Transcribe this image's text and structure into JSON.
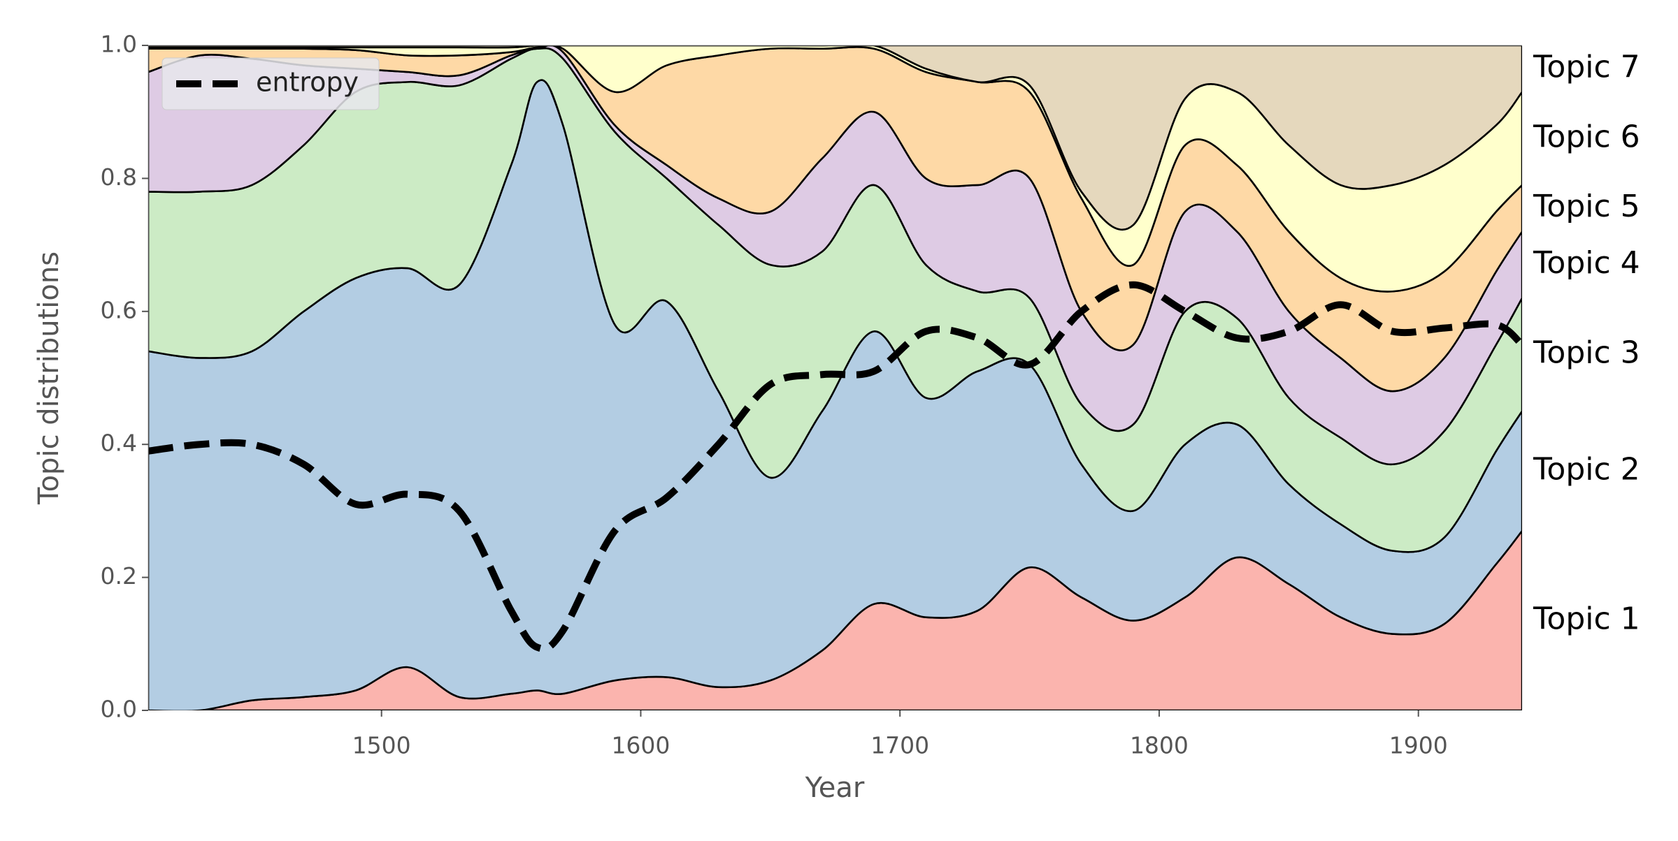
{
  "chart_data": {
    "type": "stackplot",
    "xlabel": "Year",
    "ylabel": "Topic distributions",
    "x": [
      1410,
      1430,
      1450,
      1470,
      1490,
      1510,
      1530,
      1550,
      1560,
      1570,
      1590,
      1610,
      1630,
      1650,
      1670,
      1690,
      1710,
      1730,
      1750,
      1770,
      1790,
      1810,
      1830,
      1850,
      1870,
      1890,
      1910,
      1930,
      1940
    ],
    "xlim": [
      1410,
      1940
    ],
    "xticks": [
      1500,
      1600,
      1700,
      1800,
      1900
    ],
    "ylim": [
      0,
      1
    ],
    "yticks": [
      {
        "value": 0,
        "label": "0.0"
      },
      0.2,
      0.4,
      0.6,
      0.8,
      {
        "value": 1,
        "label": "1.0"
      }
    ],
    "series": [
      {
        "name": "Topic 1",
        "color": "#fbb4ae",
        "values": [
          0,
          0,
          0.015,
          0.02,
          0.03,
          0.065,
          0.02,
          0.025,
          0.03,
          0.025,
          0.045,
          0.05,
          0.035,
          0.045,
          0.09,
          0.16,
          0.14,
          0.15,
          0.215,
          0.17,
          0.135,
          0.17,
          0.23,
          0.19,
          0.14,
          0.115,
          0.13,
          0.22,
          0.27
        ]
      },
      {
        "name": "Topic 2",
        "color": "#b3cde3",
        "values": [
          0.54,
          0.53,
          0.525,
          0.58,
          0.62,
          0.6,
          0.62,
          0.795,
          0.915,
          0.855,
          0.535,
          0.565,
          0.445,
          0.305,
          0.36,
          0.41,
          0.33,
          0.36,
          0.305,
          0.2,
          0.165,
          0.23,
          0.2,
          0.15,
          0.14,
          0.125,
          0.13,
          0.17,
          0.18
        ]
      },
      {
        "name": "Topic 3",
        "color": "#ccebc5",
        "values": [
          0.24,
          0.25,
          0.25,
          0.25,
          0.28,
          0.28,
          0.3,
          0.16,
          0.05,
          0.1,
          0.29,
          0.185,
          0.25,
          0.32,
          0.24,
          0.22,
          0.2,
          0.12,
          0.1,
          0.09,
          0.13,
          0.2,
          0.16,
          0.13,
          0.13,
          0.13,
          0.16,
          0.16,
          0.17
        ]
      },
      {
        "name": "Topic 4",
        "color": "#decbe4",
        "values": [
          0.18,
          0.205,
          0.19,
          0.12,
          0.035,
          0.015,
          0.015,
          0.005,
          0,
          0.01,
          0.01,
          0.02,
          0.04,
          0.08,
          0.14,
          0.11,
          0.13,
          0.16,
          0.18,
          0.14,
          0.12,
          0.15,
          0.13,
          0.13,
          0.12,
          0.11,
          0.11,
          0.11,
          0.1
        ]
      },
      {
        "name": "Topic 5",
        "color": "#fed9a6",
        "values": [
          0.035,
          0.01,
          0.015,
          0.025,
          0.028,
          0.025,
          0.03,
          0.005,
          0.002,
          0.005,
          0.05,
          0.15,
          0.215,
          0.245,
          0.165,
          0.095,
          0.16,
          0.155,
          0.13,
          0.17,
          0.12,
          0.1,
          0.1,
          0.12,
          0.12,
          0.15,
          0.13,
          0.09,
          0.07
        ]
      },
      {
        "name": "Topic 6",
        "color": "#ffffcc",
        "values": [
          0.002,
          0.002,
          0.002,
          0.002,
          0.004,
          0.012,
          0.012,
          0.007,
          0.003,
          0.005,
          0.07,
          0.03,
          0.015,
          0.005,
          0.005,
          0.005,
          0.005,
          0,
          0.01,
          0.01,
          0.06,
          0.07,
          0.11,
          0.13,
          0.14,
          0.16,
          0.16,
          0.13,
          0.14
        ]
      },
      {
        "name": "Topic 7",
        "color": "#e5d8bd",
        "values": [
          0.003,
          0.003,
          0.003,
          0.003,
          0.003,
          0.003,
          0.003,
          0.003,
          0,
          0,
          0,
          0,
          0,
          0,
          0,
          0,
          0.035,
          0.055,
          0.06,
          0.22,
          0.27,
          0.08,
          0.07,
          0.15,
          0.21,
          0.21,
          0.18,
          0.12,
          0.07
        ]
      }
    ],
    "lines": [
      {
        "name": "entropy",
        "color": "#000000",
        "linestyle": "dashed",
        "values": [
          0.39,
          0.4,
          0.4,
          0.37,
          0.31,
          0.325,
          0.3,
          0.15,
          0.095,
          0.12,
          0.27,
          0.32,
          0.4,
          0.49,
          0.505,
          0.51,
          0.57,
          0.56,
          0.52,
          0.6,
          0.64,
          0.6,
          0.56,
          0.57,
          0.61,
          0.57,
          0.575,
          0.58,
          0.55
        ]
      }
    ],
    "legend": "upper left"
  }
}
